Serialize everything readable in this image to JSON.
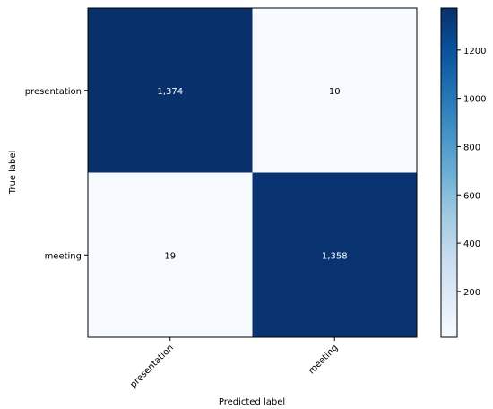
{
  "chart_data": {
    "type": "heatmap",
    "title": "",
    "xlabel": "Predicted label",
    "ylabel": "True label",
    "x_categories": [
      "presentation",
      "meeting"
    ],
    "y_categories": [
      "presentation",
      "meeting"
    ],
    "values": [
      [
        1374,
        10
      ],
      [
        19,
        1358
      ]
    ],
    "cell_labels": [
      [
        "1,374",
        "10"
      ],
      [
        "19",
        "1,358"
      ]
    ],
    "colormap": "Blues",
    "color_range": [
      10,
      1374
    ],
    "colorbar_ticks": [
      200,
      400,
      600,
      800,
      1000,
      1200
    ],
    "colorbar_tick_labels": [
      "200",
      "400",
      "600",
      "800",
      "1000",
      "1200"
    ],
    "grid": false,
    "x_tick_rotation_deg": 45
  }
}
